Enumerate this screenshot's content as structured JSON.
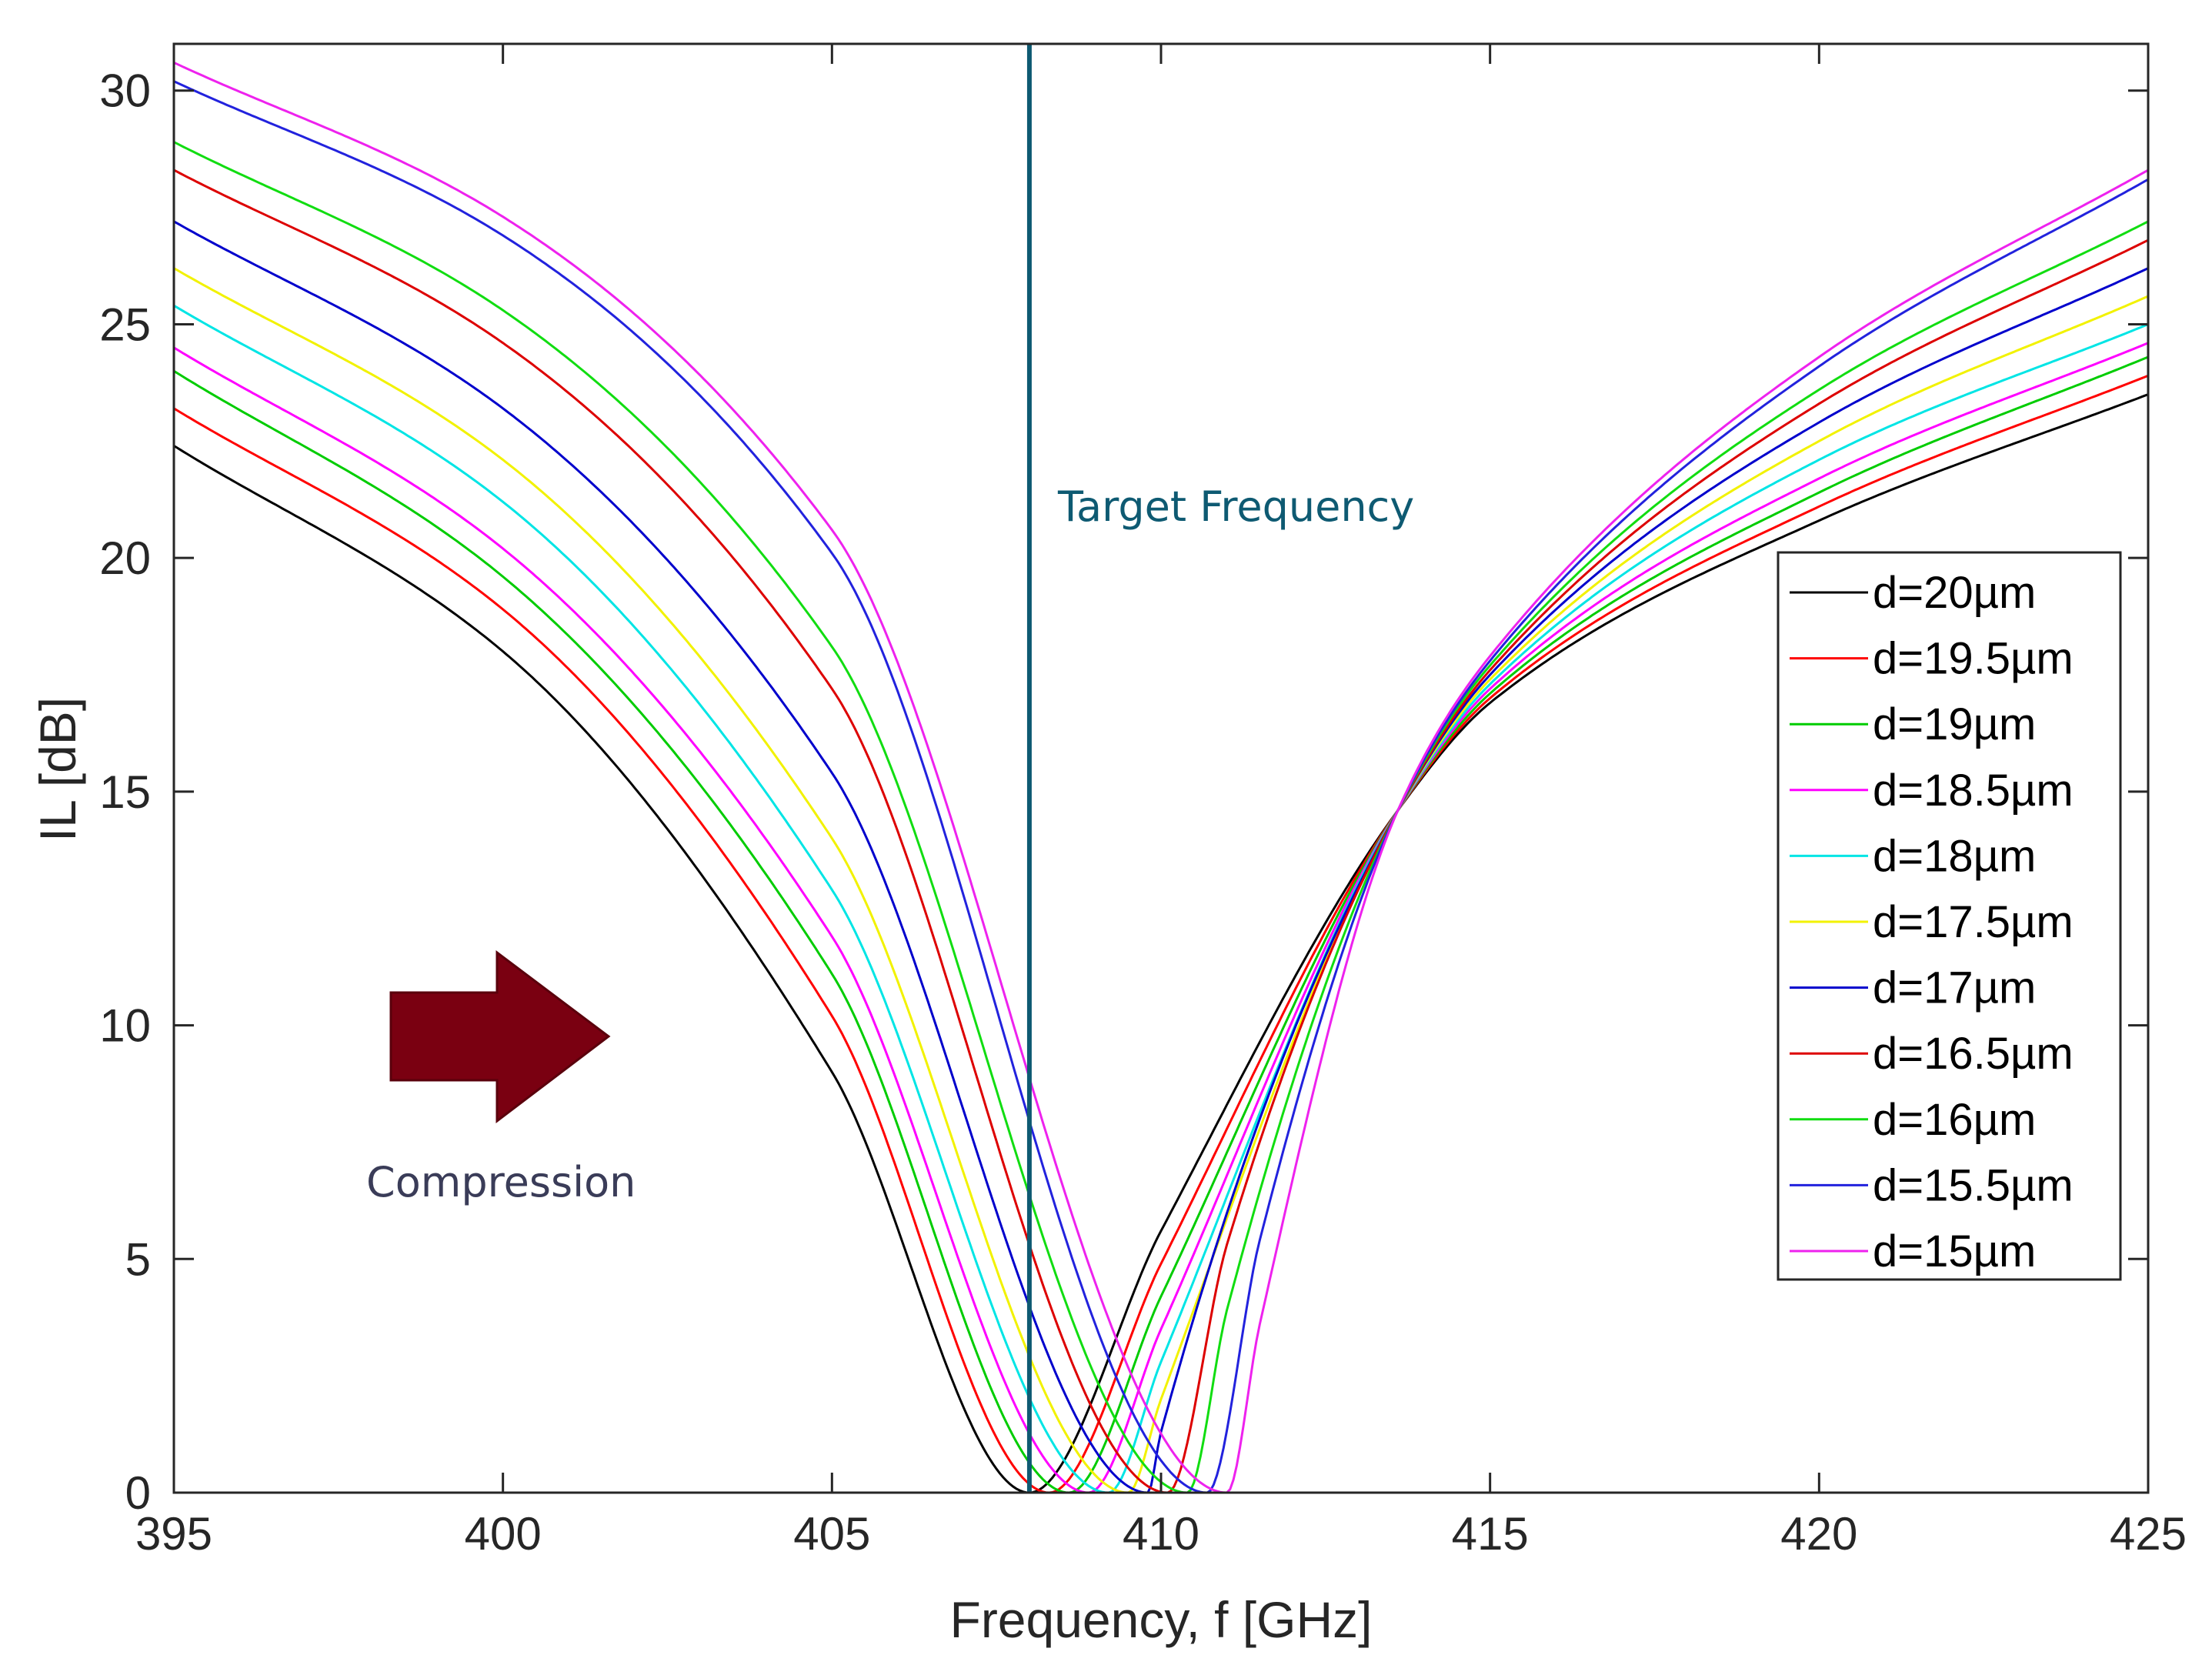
{
  "chart_data": {
    "type": "line",
    "title": "",
    "xlabel": "Frequency, f [GHz]",
    "ylabel": "IL [dB]",
    "xlim": [
      395,
      425
    ],
    "ylim": [
      0,
      31
    ],
    "xticks": [
      395,
      400,
      405,
      410,
      415,
      420,
      425
    ],
    "yticks": [
      0,
      5,
      10,
      15,
      20,
      25,
      30
    ],
    "grid": false,
    "legend_position": "right",
    "series": [
      {
        "name": "d=20µm",
        "color": "#000000",
        "dip_x": 408.0,
        "x": [
          395,
          400,
          405,
          408.0,
          410,
          413.6,
          415,
          420,
          425
        ],
        "y": [
          22.4,
          18.0,
          9.0,
          0,
          5.6,
          14.6,
          16.9,
          20.8,
          23.5
        ]
      },
      {
        "name": "d=19.5µm",
        "color": "#ff0000",
        "dip_x": 408.3,
        "x": [
          395,
          400,
          405,
          408.3,
          410,
          413.6,
          415,
          420,
          425
        ],
        "y": [
          23.2,
          18.9,
          10.2,
          0,
          4.9,
          14.6,
          17.0,
          21.1,
          23.9
        ]
      },
      {
        "name": "d=19µm",
        "color": "#00cc00",
        "dip_x": 408.6,
        "x": [
          395,
          400,
          405,
          408.6,
          410,
          413.6,
          415,
          420,
          425
        ],
        "y": [
          24.0,
          19.6,
          11.1,
          0,
          4.2,
          14.6,
          17.1,
          21.4,
          24.3
        ]
      },
      {
        "name": "d=18.5µm",
        "color": "#ff00ff",
        "dip_x": 408.9,
        "x": [
          395,
          400,
          405,
          408.9,
          410,
          413.6,
          415,
          420,
          425
        ],
        "y": [
          24.5,
          20.2,
          11.9,
          0,
          3.5,
          14.6,
          17.2,
          21.7,
          24.6
        ]
      },
      {
        "name": "d=18µm",
        "color": "#00e5e5",
        "dip_x": 409.2,
        "x": [
          395,
          400,
          405,
          409.2,
          410,
          413.6,
          415,
          420,
          425
        ],
        "y": [
          25.4,
          21.2,
          12.9,
          0,
          2.8,
          14.6,
          17.3,
          22.1,
          25.0
        ]
      },
      {
        "name": "d=17.5µm",
        "color": "#f2f200",
        "dip_x": 409.5,
        "x": [
          395,
          400,
          405,
          409.5,
          410,
          413.6,
          415,
          420,
          425
        ],
        "y": [
          26.2,
          22.1,
          14.0,
          0,
          2.0,
          14.6,
          17.4,
          22.5,
          25.6
        ]
      },
      {
        "name": "d=17µm",
        "color": "#0000cc",
        "dip_x": 409.8,
        "x": [
          395,
          400,
          405,
          409.8,
          410,
          413.6,
          415,
          420,
          425
        ],
        "y": [
          27.2,
          23.2,
          15.4,
          0,
          1.3,
          14.6,
          17.5,
          22.9,
          26.2
        ]
      },
      {
        "name": "d=16.5µm",
        "color": "#dd0000",
        "dip_x": 410.1,
        "x": [
          395,
          400,
          405,
          410.1,
          411,
          413.6,
          415,
          420,
          425
        ],
        "y": [
          28.3,
          24.6,
          17.2,
          0,
          5.3,
          14.6,
          17.6,
          23.3,
          26.8
        ]
      },
      {
        "name": "d=16µm",
        "color": "#11dd11",
        "dip_x": 410.4,
        "x": [
          395,
          400,
          405,
          410.4,
          411,
          413.6,
          415,
          420,
          425
        ],
        "y": [
          28.9,
          25.3,
          18.1,
          0,
          3.9,
          14.6,
          17.7,
          23.6,
          27.2
        ]
      },
      {
        "name": "d=15.5µm",
        "color": "#2222dd",
        "dip_x": 410.7,
        "x": [
          395,
          400,
          405,
          410.7,
          411.5,
          413.6,
          415,
          420,
          425
        ],
        "y": [
          30.2,
          26.9,
          20.1,
          0,
          5.4,
          14.6,
          17.8,
          24.1,
          28.1
        ]
      },
      {
        "name": "d=15µm",
        "color": "#ee22ee",
        "dip_x": 411.0,
        "x": [
          395,
          400,
          405,
          411.0,
          411.5,
          413.6,
          415,
          420,
          425
        ],
        "y": [
          30.6,
          27.3,
          20.6,
          0,
          3.6,
          14.6,
          17.9,
          24.3,
          28.3
        ]
      }
    ],
    "annotations": [
      {
        "type": "vline",
        "x": 408.0,
        "label": "Target Frequency",
        "color": "#0e5a72"
      },
      {
        "type": "arrow",
        "direction": "right",
        "label": "Compression",
        "color": "#7a0011",
        "label_color": "#3a3c58"
      }
    ]
  }
}
